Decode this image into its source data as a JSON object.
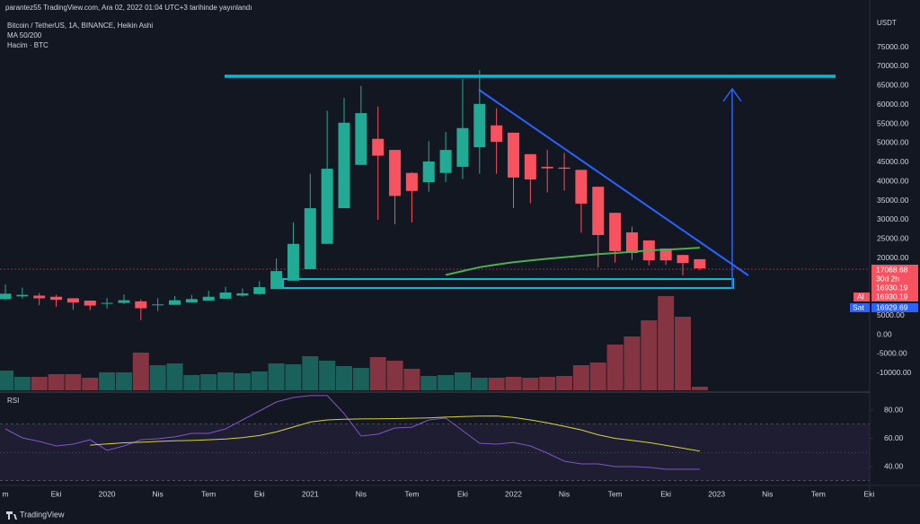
{
  "header": {
    "published": "parantez55 TradingView.com, Ara 02, 2022 01:04 UTC+3 tarihinde yayınlandı",
    "symbol": "Bitcoin / TetherUS, 1A, BINANCE, Heikin Ashi",
    "ma": "MA 50/200",
    "volume": "Hacim · BTC",
    "currency": "USDT",
    "rsi": "RSI"
  },
  "price_scale_labels": {
    "last": "17068.68",
    "countdown": "30d 2h",
    "last2": "16930.19",
    "buy_label": "Al",
    "buy": "16930.19",
    "sell_label": "Sat",
    "sell": "16929.69"
  },
  "footer": "TradingView",
  "chart_data": [
    {
      "type": "candlestick",
      "up_color": "#22ab94",
      "down_color": "#f7525f",
      "grid": true,
      "x": [
        "2019-07",
        "2019-08",
        "2019-09",
        "2019-10",
        "2019-11",
        "2019-12",
        "2020-01",
        "2020-02",
        "2020-03",
        "2020-04",
        "2020-05",
        "2020-06",
        "2020-07",
        "2020-08",
        "2020-09",
        "2020-10",
        "2020-11",
        "2020-12",
        "2021-01",
        "2021-02",
        "2021-03",
        "2021-04",
        "2021-05",
        "2021-06",
        "2021-07",
        "2021-08",
        "2021-09",
        "2021-10",
        "2021-11",
        "2021-12",
        "2022-01",
        "2022-02",
        "2022-03",
        "2022-04",
        "2022-05",
        "2022-06",
        "2022-07",
        "2022-08",
        "2022-09",
        "2022-10",
        "2022-11",
        "2022-12"
      ],
      "open": [
        9300,
        10000,
        10200,
        9900,
        9500,
        8900,
        8200,
        8300,
        8700,
        7800,
        7800,
        8400,
        8900,
        9400,
        10200,
        10600,
        11900,
        14100,
        17100,
        23700,
        33000,
        44300,
        51100,
        48200,
        42200,
        39800,
        42200,
        43800,
        48900,
        54600,
        52700,
        47100,
        43800,
        43600,
        43000,
        38600,
        31800,
        26700,
        24600,
        22500,
        20800,
        19700
      ],
      "high": [
        13100,
        12300,
        10900,
        10400,
        9500,
        8900,
        9600,
        10500,
        9200,
        9500,
        10100,
        10400,
        11500,
        12500,
        12100,
        14000,
        19900,
        29300,
        42000,
        58400,
        61800,
        64900,
        59500,
        48200,
        42400,
        50500,
        52900,
        66700,
        69000,
        59100,
        52700,
        47100,
        48200,
        47400,
        43000,
        38600,
        31800,
        28200,
        24600,
        22500,
        20800,
        19700
      ],
      "low": [
        9000,
        9400,
        7700,
        7300,
        6500,
        6400,
        6800,
        8000,
        3800,
        6200,
        7800,
        8400,
        8900,
        9400,
        9900,
        10400,
        11900,
        14100,
        17100,
        23700,
        33000,
        44300,
        30000,
        28800,
        29300,
        37300,
        39800,
        40600,
        42000,
        42000,
        33000,
        34300,
        37100,
        37600,
        26600,
        17600,
        18800,
        19500,
        18100,
        18200,
        15500,
        16800
      ],
      "close": [
        10700,
        10400,
        9500,
        9100,
        8400,
        7600,
        8300,
        9000,
        6900,
        7900,
        9000,
        9300,
        9900,
        11000,
        10800,
        12400,
        16600,
        23700,
        33000,
        43300,
        55300,
        57800,
        46700,
        36200,
        37500,
        45200,
        48200,
        53900,
        60200,
        50300,
        41000,
        40500,
        43400,
        43300,
        34200,
        26000,
        21800,
        21300,
        19400,
        19400,
        18700,
        17300
      ],
      "volume": [
        330000,
        225000,
        225000,
        270000,
        270000,
        210000,
        300000,
        300000,
        630000,
        420000,
        450000,
        255000,
        270000,
        300000,
        285000,
        315000,
        450000,
        435000,
        570000,
        495000,
        405000,
        375000,
        555000,
        495000,
        360000,
        240000,
        255000,
        300000,
        210000,
        210000,
        225000,
        210000,
        225000,
        240000,
        420000,
        465000,
        765000,
        900000,
        1170000,
        1575000,
        1230000,
        60000
      ],
      "volume_ylim": [
        0,
        6300000
      ],
      "ma_color": "#4caf50",
      "ma_values": [
        null,
        null,
        null,
        null,
        null,
        null,
        null,
        null,
        null,
        null,
        null,
        null,
        null,
        null,
        null,
        null,
        null,
        null,
        null,
        null,
        null,
        null,
        null,
        null,
        null,
        null,
        15600,
        16600,
        17600,
        18300,
        18900,
        19400,
        19800,
        20200,
        20600,
        21000,
        21300,
        21600,
        22000,
        22200,
        22400,
        22700
      ],
      "ylim": [
        -14500,
        83800
      ],
      "yticks": [
        {
          "value": 75000,
          "label": "75000.00"
        },
        {
          "value": 70000,
          "label": "70000.00"
        },
        {
          "value": 65000,
          "label": "65000.00"
        },
        {
          "value": 60000,
          "label": "60000.00"
        },
        {
          "value": 55000,
          "label": "55000.00"
        },
        {
          "value": 50000,
          "label": "50000.00"
        },
        {
          "value": 45000,
          "label": "45000.00"
        },
        {
          "value": 40000,
          "label": "40000.00"
        },
        {
          "value": 35000,
          "label": "35000.00"
        },
        {
          "value": 30000,
          "label": "30000.00"
        },
        {
          "value": 25000,
          "label": "25000.00"
        },
        {
          "value": 20000,
          "label": "20000.00"
        },
        {
          "value": 5000,
          "label": "5000.00"
        },
        {
          "value": 0,
          "label": "0.00"
        },
        {
          "value": -5000,
          "label": "-5000.00"
        },
        {
          "value": -10000,
          "label": "-10000.00"
        }
      ],
      "xticks": [
        {
          "value": "2019-07",
          "label": "m"
        },
        {
          "value": "2019-10",
          "label": "Eki"
        },
        {
          "value": "2020-01",
          "label": "2020"
        },
        {
          "value": "2020-04",
          "label": "Nis"
        },
        {
          "value": "2020-07",
          "label": "Tem"
        },
        {
          "value": "2020-10",
          "label": "Eki"
        },
        {
          "value": "2021-01",
          "label": "2021"
        },
        {
          "value": "2021-04",
          "label": "Nis"
        },
        {
          "value": "2021-07",
          "label": "Tem"
        },
        {
          "value": "2021-10",
          "label": "Eki"
        },
        {
          "value": "2022-01",
          "label": "2022"
        },
        {
          "value": "2022-04",
          "label": "Nis"
        },
        {
          "value": "2022-07",
          "label": "Tem"
        },
        {
          "value": "2022-10",
          "label": "Eki"
        },
        {
          "value": "2023-01",
          "label": "2023"
        },
        {
          "value": "2023-04",
          "label": "Nis"
        },
        {
          "value": "2023-07",
          "label": "Tem"
        },
        {
          "value": "2023-10",
          "label": "Eki"
        }
      ]
    },
    {
      "type": "line",
      "rsi_color": "#7e57c2",
      "rsi_ma_color": "#d4d43a",
      "band": [
        30,
        70
      ],
      "midline": 50,
      "rsi_values": [
        66.7,
        60.3,
        57.8,
        54.6,
        55.9,
        59,
        51.4,
        54.6,
        59,
        59.7,
        61,
        63.5,
        63.5,
        66.7,
        73,
        79.4,
        85.7,
        88.9,
        90.2,
        90.2,
        77.5,
        61.6,
        62.9,
        67.3,
        67.9,
        73,
        74.3,
        65.4,
        56.5,
        55.9,
        57.1,
        54.6,
        49.5,
        43.8,
        41.9,
        41.9,
        40,
        40,
        39.4,
        38.1,
        38.1,
        38.1
      ],
      "rsi_ma_values": [
        null,
        null,
        null,
        null,
        null,
        55.2,
        56,
        56.8,
        57.2,
        57.8,
        58.2,
        58.5,
        59,
        59.5,
        60.5,
        62,
        64.5,
        68,
        71.5,
        73,
        73.5,
        73.7,
        73.8,
        74,
        74.2,
        74.5,
        75,
        75.4,
        75.7,
        75.8,
        74.8,
        73,
        71,
        68.5,
        66,
        62.5,
        60,
        58.5,
        57,
        55,
        53,
        51
      ],
      "ylim": [
        27.3,
        90.8
      ],
      "yticks": [
        {
          "value": 80,
          "label": "80.00"
        },
        {
          "value": 60,
          "label": "60.00"
        },
        {
          "value": 40,
          "label": "40.00"
        }
      ]
    }
  ]
}
